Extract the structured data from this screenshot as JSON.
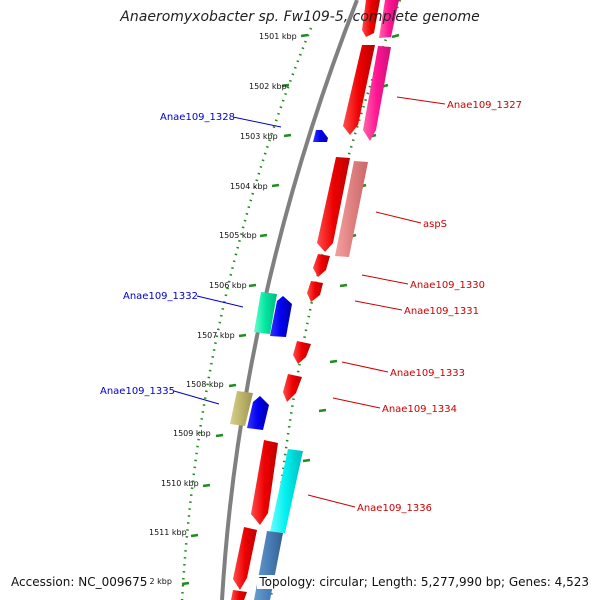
{
  "title": "Anaeromyxobacter sp. Fw109-5, complete genome",
  "accession": "Accession: NC_009675",
  "summary": "Topology: circular; Length: 5,277,990 bp; Genes: 4,523",
  "colors": {
    "backbone": "#808080",
    "ticks": "#228B22",
    "forward_label": "#0000CC",
    "reverse_label": "#CC0000"
  },
  "kbp_ticks": [
    "1501 kbp",
    "1502 kbp",
    "1503 kbp",
    "1504 kbp",
    "1505 kbp",
    "1506 kbp",
    "1507 kbp",
    "1508 kbp",
    "1509 kbp",
    "1510 kbp",
    "1511 kbp",
    ".2 kbp"
  ],
  "gene_labels": [
    {
      "text": "Anae109_1327",
      "strand": "reverse"
    },
    {
      "text": "Anae109_1328",
      "strand": "forward"
    },
    {
      "text": "aspS",
      "strand": "reverse"
    },
    {
      "text": "Anae109_1330",
      "strand": "reverse"
    },
    {
      "text": "Anae109_1331",
      "strand": "reverse"
    },
    {
      "text": "Anae109_1332",
      "strand": "forward"
    },
    {
      "text": "Anae109_1333",
      "strand": "reverse"
    },
    {
      "text": "Anae109_1334",
      "strand": "reverse"
    },
    {
      "text": "Anae109_1335",
      "strand": "forward"
    },
    {
      "text": "Anae109_1336",
      "strand": "reverse"
    }
  ]
}
